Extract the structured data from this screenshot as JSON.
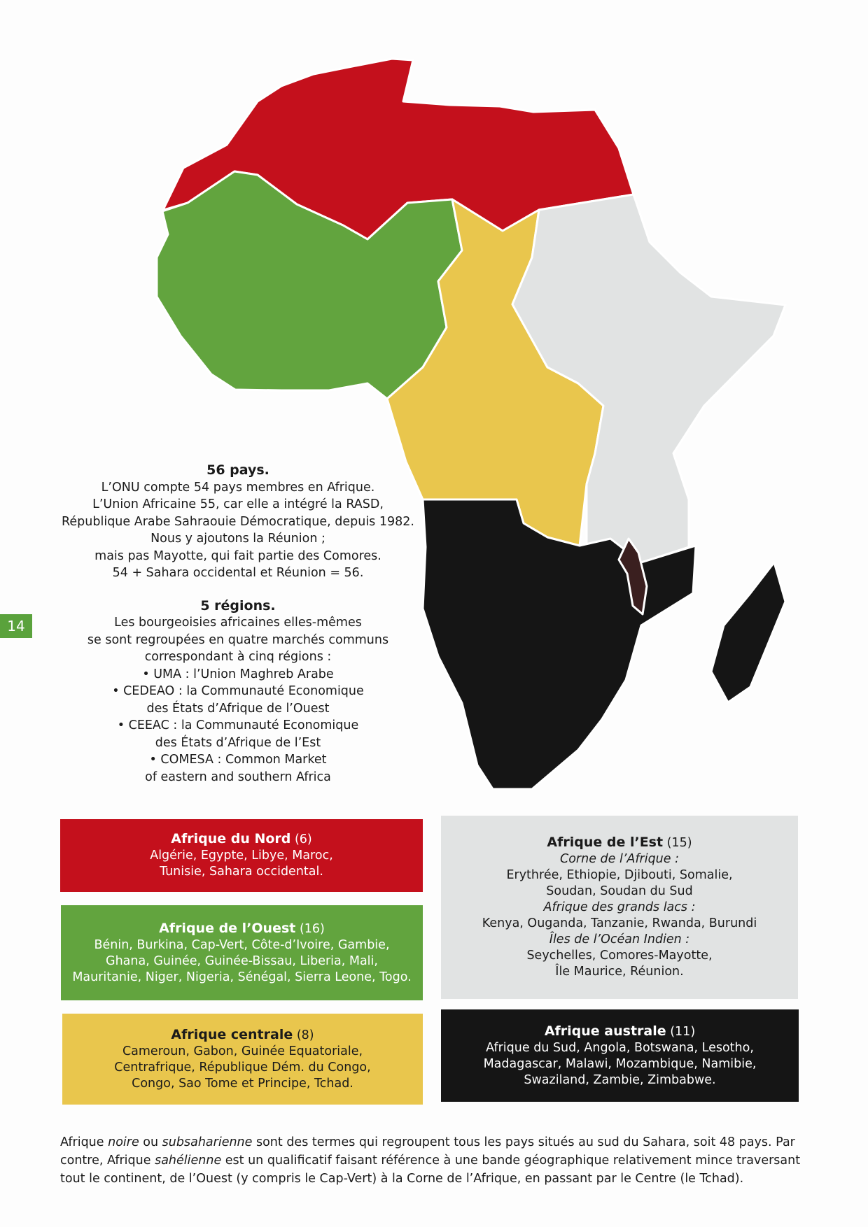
{
  "colors": {
    "nord": "#c4101c",
    "ouest": "#62a43e",
    "centrale": "#e9c64d",
    "est": "#e1e3e3",
    "australe": "#151515",
    "malawi": "#3a1f1f"
  },
  "page_number": "14",
  "info": {
    "title1": "56 pays.",
    "lines1": [
      "L’ONU compte 54 pays membres en Afrique.",
      "L’Union Africaine 55, car elle a intégré la RASD,",
      "République Arabe Sahraouie Démocratique, depuis 1982.",
      "Nous y ajoutons la Réunion ;",
      "mais pas Mayotte, qui fait partie des Comores.",
      "54 + Sahara occidental et Réunion = 56."
    ],
    "title2": "5 régions.",
    "lines2": [
      "Les bourgeoisies africaines elles-mêmes",
      "se sont regroupées en quatre marchés communs",
      "correspondant à cinq régions :",
      "• UMA : l’Union Maghreb Arabe",
      "• CEDEAO : la Communauté Economique",
      "des États d’Afrique de l’Ouest",
      "• CEEAC : la Communauté Economique",
      "des États d’Afrique de l’Est",
      "• COMESA : Common Market",
      "of eastern and southern Africa"
    ]
  },
  "regions": {
    "nord": {
      "name": "Afrique du Nord",
      "count": "(6)",
      "lines": [
        "Algérie, Egypte, Libye, Maroc,",
        "Tunisie, Sahara occidental."
      ]
    },
    "ouest": {
      "name": "Afrique de l’Ouest",
      "count": "(16)",
      "lines": [
        "Bénin, Burkina, Cap-Vert, Côte-d’Ivoire, Gambie,",
        "Ghana, Guinée, Guinée-Bissau, Liberia, Mali,",
        "Mauritanie, Niger, Nigeria, Sénégal, Sierra Leone, Togo."
      ]
    },
    "centrale": {
      "name": "Afrique centrale",
      "count": "(8)",
      "lines": [
        "Cameroun, Gabon, Guinée Equatoriale,",
        "Centrafrique, République Dém. du Congo,",
        "Congo, Sao Tome et Principe, Tchad."
      ]
    },
    "est": {
      "name": "Afrique de l’Est",
      "count": "(15)",
      "sub1": "Corne de l’Afrique :",
      "lines1": [
        "Erythrée, Ethiopie, Djibouti, Somalie,",
        "Soudan, Soudan du Sud"
      ],
      "sub2": "Afrique des grands lacs :",
      "lines2": [
        "Kenya, Ouganda, Tanzanie, Rwanda, Burundi"
      ],
      "sub3": "Îles de l’Océan Indien :",
      "lines3": [
        "Seychelles, Comores-Mayotte,",
        "Île Maurice, Réunion."
      ]
    },
    "australe": {
      "name": "Afrique australe",
      "count": "(11)",
      "lines": [
        "Afrique du Sud, Angola, Botswana, Lesotho,",
        "Madagascar, Malawi, Mozambique, Namibie,",
        "Swaziland, Zambie, Zimbabwe."
      ]
    }
  },
  "footer": {
    "p1": "Afrique ",
    "e1": "noire",
    "p2": " ou ",
    "e2": "subsaharienne",
    "p3": " sont des termes qui regroupent tous les pays situés au sud du Sahara, soit 48 pays. Par contre, Afrique ",
    "e3": "sahélienne",
    "p4": " est un qualificatif faisant référence à une bande géographique relativement mince traversant tout le continent, de l’Ouest (y compris le Cap-Vert) à la Corne de l’Afrique, en passant par le Centre (le Tchad)."
  }
}
